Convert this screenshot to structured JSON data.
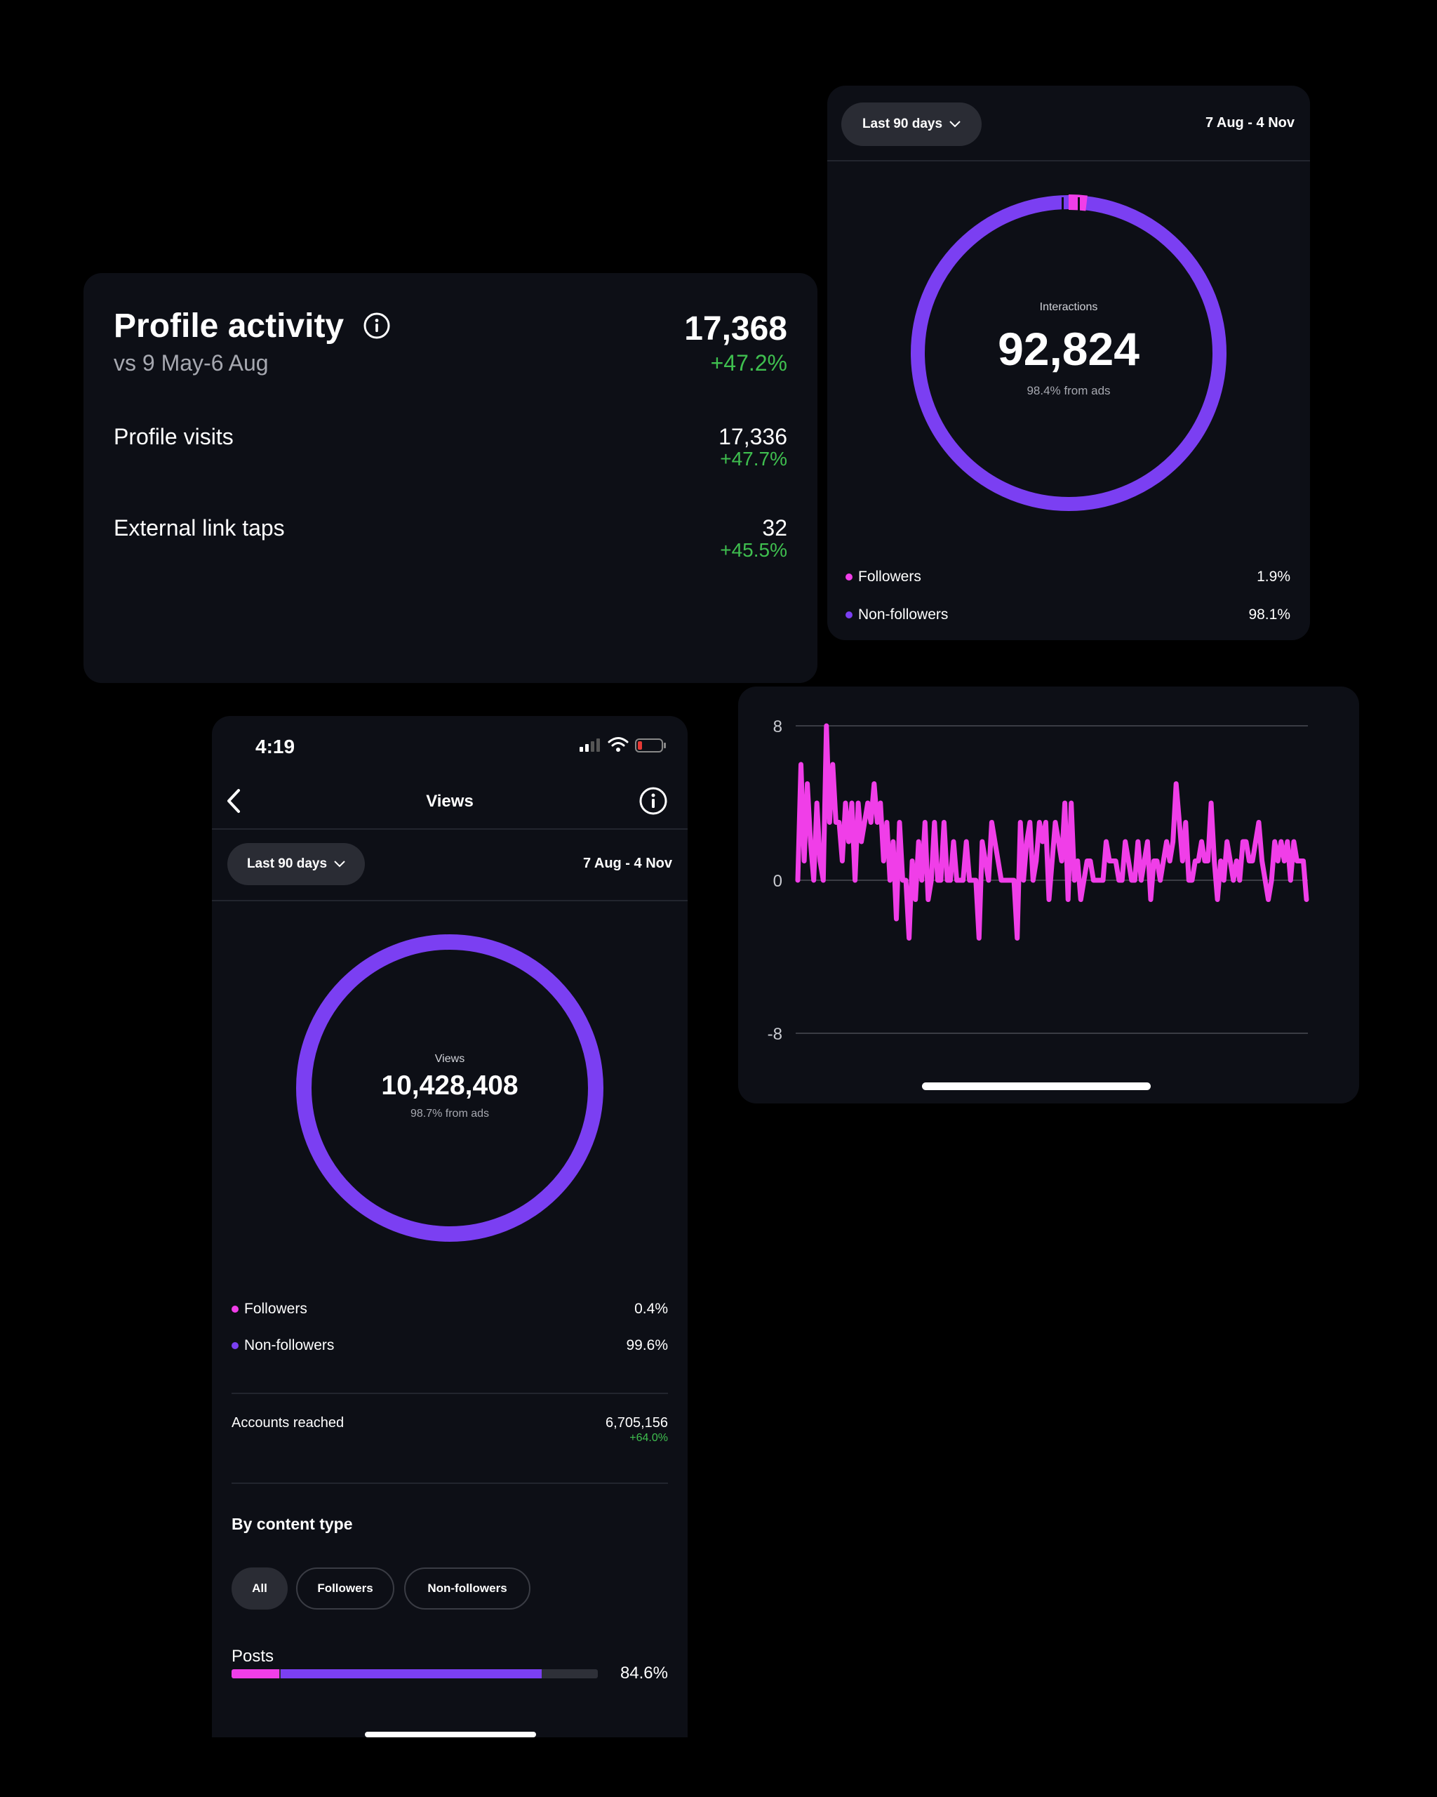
{
  "profile_activity": {
    "title": "Profile activity",
    "subtitle": "vs 9 May-6 Aug",
    "total": "17,368",
    "total_change": "+47.2%",
    "rows": [
      {
        "label": "Profile visits",
        "value": "17,336",
        "change": "+47.7%"
      },
      {
        "label": "External link taps",
        "value": "32",
        "change": "+45.5%"
      }
    ]
  },
  "interactions": {
    "range_button": "Last 90 days",
    "date_range": "7 Aug - 4 Nov",
    "ring_label": "Interactions",
    "ring_value": "92,824",
    "ring_sub": "98.4% from ads",
    "followers_share": 0.019,
    "legend": [
      {
        "label": "Followers",
        "value": "1.9%"
      },
      {
        "label": "Non-followers",
        "value": "98.1%"
      }
    ]
  },
  "views": {
    "status_time": "4:19",
    "title": "Views",
    "range_button": "Last 90 days",
    "date_range": "7 Aug - 4 Nov",
    "ring_label": "Views",
    "ring_value": "10,428,408",
    "ring_sub": "98.7% from ads",
    "legend": [
      {
        "label": "Followers",
        "value": "0.4%"
      },
      {
        "label": "Non-followers",
        "value": "99.6%"
      }
    ],
    "accounts_reached_label": "Accounts reached",
    "accounts_reached_value": "6,705,156",
    "accounts_reached_change": "+64.0%",
    "by_content_type": "By content type",
    "chips": [
      "All",
      "Followers",
      "Non-followers"
    ],
    "posts_label": "Posts",
    "posts_value": "84.6%",
    "posts_followers_fraction": 0.13,
    "posts_nonfollowers_fraction": 0.716
  },
  "colors": {
    "accent_purple": "#7b3ff2",
    "accent_pink": "#f03ee8",
    "positive_green": "#3fbf4f",
    "card_bg": "#0d0f16"
  },
  "chart_data": {
    "type": "line",
    "yticks": [
      "8",
      "0",
      "-8"
    ],
    "ylim": [
      -8,
      8
    ],
    "series": [
      {
        "values": [
          0,
          6,
          1,
          5,
          2,
          0,
          4,
          1,
          0,
          8,
          3,
          6,
          3,
          3,
          1,
          4,
          2,
          4,
          0,
          4,
          2,
          3,
          4,
          3,
          5,
          3,
          4,
          1,
          3,
          0,
          2,
          -2,
          3,
          0,
          0,
          -3,
          1,
          -1,
          2,
          0,
          3,
          -1,
          0,
          3,
          0,
          0,
          3,
          0,
          0,
          2,
          0,
          0,
          0,
          2,
          0,
          0,
          0,
          -3,
          2,
          1,
          0,
          3,
          2,
          1,
          0,
          0,
          0,
          0,
          0,
          -3,
          3,
          0,
          2,
          3,
          0,
          1,
          3,
          2,
          3,
          -1,
          1,
          3,
          2,
          1,
          4,
          -1,
          4,
          0,
          1,
          -1,
          0,
          1,
          1,
          0,
          0,
          0,
          0,
          2,
          1,
          1,
          1,
          0,
          0,
          2,
          1,
          0,
          0,
          2,
          0,
          1,
          2,
          -1,
          1,
          1,
          0,
          1,
          2,
          1,
          2,
          5,
          3,
          1,
          3,
          0,
          0,
          1,
          1,
          2,
          1,
          1,
          4,
          1,
          -1,
          1,
          0,
          2,
          1,
          0,
          1,
          0,
          2,
          2,
          1,
          1,
          2,
          3,
          1,
          0,
          -1,
          0,
          2,
          1,
          2,
          1,
          2,
          0,
          2,
          1,
          1,
          1,
          -1
        ]
      }
    ]
  }
}
